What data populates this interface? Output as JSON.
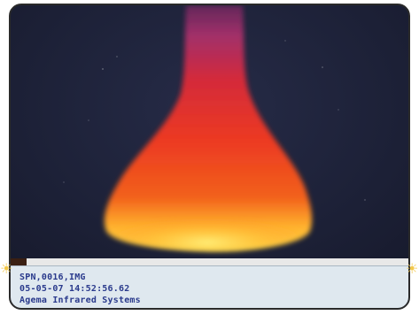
{
  "thermal_image": {
    "background_color": "#1e2238",
    "plume_colors": {
      "tip": "#b0306e",
      "upper": "#d9282a",
      "middle": "#f04a1e",
      "base": "#ffd23a"
    }
  },
  "info_panel": {
    "file_name": "SPN,0016,IMG",
    "timestamp": "05-05-07 14:52:56.62",
    "system_name": "Agema Infrared Systems"
  },
  "accent_colors": {
    "info_text": "#2a3a8c",
    "panel_bg": "#dfe8ef"
  }
}
